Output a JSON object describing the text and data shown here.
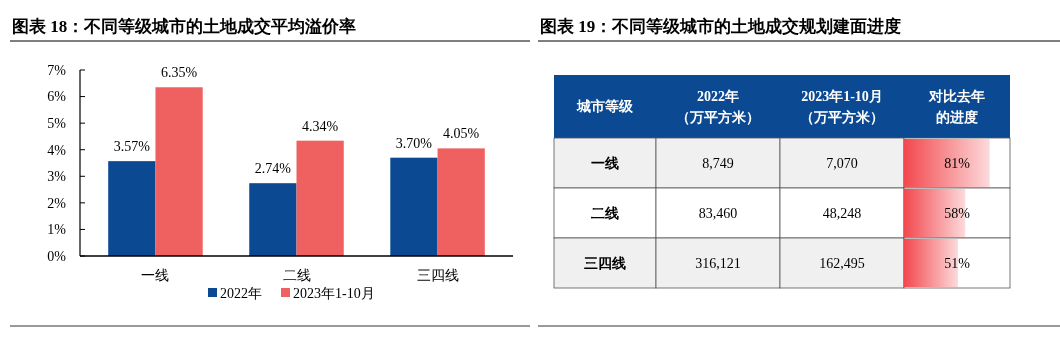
{
  "chart_data": [
    {
      "type": "bar",
      "title": "图表 18：不同等级城市的土地成交平均溢价率",
      "categories": [
        "一线",
        "二线",
        "三四线"
      ],
      "series": [
        {
          "name": "2022年",
          "color": "#0b4a92",
          "values": [
            3.57,
            2.74,
            3.7
          ],
          "value_labels": [
            "3.57%",
            "2.74%",
            "3.70%"
          ]
        },
        {
          "name": "2023年1-10月",
          "color": "#ef6060",
          "values": [
            6.35,
            4.34,
            4.05
          ],
          "value_labels": [
            "6.35%",
            "4.34%",
            "4.05%"
          ]
        }
      ],
      "ylim": [
        0,
        7
      ],
      "yticks": [
        {
          "value": 0,
          "label": "0%"
        },
        {
          "value": 1,
          "label": "1%"
        },
        {
          "value": 2,
          "label": "2%"
        },
        {
          "value": 3,
          "label": "3%"
        },
        {
          "value": 4,
          "label": "4%"
        },
        {
          "value": 5,
          "label": "5%"
        },
        {
          "value": 6,
          "label": "6%"
        },
        {
          "value": 7,
          "label": "7%"
        }
      ],
      "grid": false,
      "legend": "bottom"
    },
    {
      "type": "other",
      "title": "图表 19：不同等级城市的土地成交规划建面进度",
      "ylabel": "城市等级",
      "categories": [
        "2022年（万平方米）",
        "2023年1-10月（万平方米）"
      ],
      "y_categories": [
        "一线",
        "二线",
        "三四线"
      ],
      "cell_labels": [
        [
          "8,749",
          "7,070"
        ],
        [
          "83,460",
          "48,248"
        ],
        [
          "316,121",
          "162,495"
        ]
      ]
    },
    {
      "type": "bar",
      "orientation": "horizontal",
      "xlabel": "对比去年的进度",
      "categories": [
        null,
        null,
        null
      ],
      "values": [
        81,
        58,
        51
      ],
      "value_labels": [
        "81%",
        "58%",
        "51%"
      ],
      "color": "#f2484e",
      "xlim": [
        0,
        100
      ]
    }
  ]
}
